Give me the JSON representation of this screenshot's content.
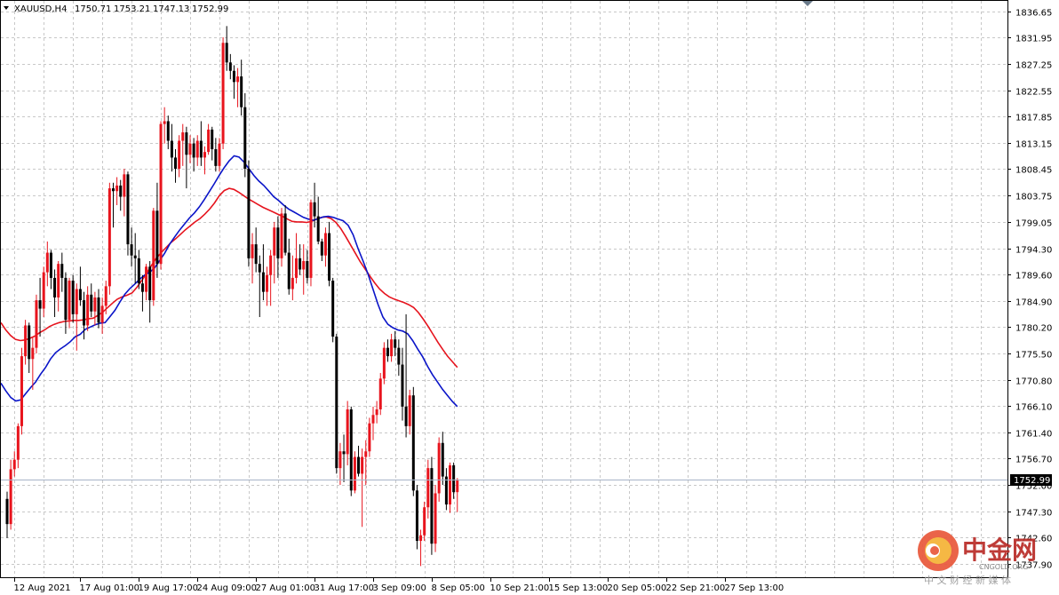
{
  "chart_data": {
    "type": "candlestick",
    "title": {
      "symbol_timeframe": "XAUUSD,H4",
      "open": "1750.71",
      "high": "1753.21",
      "low": "1747.13",
      "close": "1752.99"
    },
    "ylim": [
      1735.5,
      1838.5
    ],
    "y_ticks": [
      "1836.65",
      "1831.95",
      "1827.25",
      "1822.55",
      "1817.85",
      "1813.15",
      "1808.45",
      "1803.75",
      "1799.05",
      "1794.30",
      "1789.60",
      "1784.90",
      "1780.20",
      "1775.50",
      "1770.80",
      "1766.10",
      "1761.40",
      "1756.70",
      "1752.00",
      "1747.30",
      "1742.60",
      "1737.90"
    ],
    "x_ticks": [
      {
        "label": "12 Aug 2021",
        "bar": 2
      },
      {
        "label": "17 Aug 01:00",
        "bar": 20
      },
      {
        "label": "19 Aug 17:00",
        "bar": 36
      },
      {
        "label": "24 Aug 09:00",
        "bar": 52
      },
      {
        "label": "27 Aug 01:00",
        "bar": 68
      },
      {
        "label": "31 Aug 17:00",
        "bar": 84
      },
      {
        "label": "3 Sep 09:00",
        "bar": 100
      },
      {
        "label": "8 Sep 05:00",
        "bar": 116
      },
      {
        "label": "10 Sep 21:00",
        "bar": 132
      },
      {
        "label": "15 Sep 13:00",
        "bar": 148
      },
      {
        "label": "20 Sep 05:00",
        "bar": 164
      },
      {
        "label": "22 Sep 21:00",
        "bar": 180
      },
      {
        "label": "27 Sep 13:00",
        "bar": 196
      }
    ],
    "current_price": "1752.99",
    "candles": [
      [
        1749.5,
        1750.8,
        1742.5,
        1745.0
      ],
      [
        1745.0,
        1756.5,
        1744.0,
        1754.8
      ],
      [
        1754.8,
        1758.0,
        1753.5,
        1756.5
      ],
      [
        1756.5,
        1763.0,
        1755.0,
        1762.5
      ],
      [
        1762.5,
        1776.5,
        1761.0,
        1775.0
      ],
      [
        1775.0,
        1781.5,
        1773.5,
        1780.5
      ],
      [
        1780.5,
        1781.0,
        1772.0,
        1774.5
      ],
      [
        1774.5,
        1778.5,
        1769.0,
        1776.5
      ],
      [
        1776.5,
        1786.0,
        1775.5,
        1785.0
      ],
      [
        1785.0,
        1789.0,
        1778.5,
        1783.5
      ],
      [
        1783.5,
        1791.0,
        1782.0,
        1790.0
      ],
      [
        1790.0,
        1795.5,
        1787.5,
        1793.5
      ],
      [
        1793.5,
        1794.0,
        1787.0,
        1789.0
      ],
      [
        1789.0,
        1790.5,
        1782.0,
        1785.5
      ],
      [
        1785.5,
        1792.0,
        1783.0,
        1791.5
      ],
      [
        1791.5,
        1793.5,
        1786.5,
        1789.0
      ],
      [
        1789.0,
        1790.0,
        1779.0,
        1781.5
      ],
      [
        1781.5,
        1789.0,
        1780.0,
        1788.5
      ],
      [
        1788.5,
        1789.5,
        1781.0,
        1782.5
      ],
      [
        1782.5,
        1788.0,
        1776.0,
        1787.0
      ],
      [
        1787.0,
        1791.0,
        1784.0,
        1785.0
      ],
      [
        1785.0,
        1786.5,
        1778.0,
        1780.5
      ],
      [
        1780.5,
        1787.5,
        1779.5,
        1786.0
      ],
      [
        1786.0,
        1788.0,
        1782.0,
        1783.0
      ],
      [
        1783.0,
        1786.5,
        1780.5,
        1785.5
      ],
      [
        1785.5,
        1787.0,
        1780.0,
        1781.0
      ],
      [
        1781.0,
        1785.5,
        1779.0,
        1784.0
      ],
      [
        1784.0,
        1788.5,
        1782.5,
        1787.5
      ],
      [
        1787.5,
        1806.0,
        1786.0,
        1805.0
      ],
      [
        1805.0,
        1806.0,
        1798.0,
        1804.5
      ],
      [
        1804.5,
        1807.0,
        1802.0,
        1805.5
      ],
      [
        1805.5,
        1806.5,
        1801.0,
        1803.5
      ],
      [
        1803.5,
        1808.5,
        1800.0,
        1807.5
      ],
      [
        1807.5,
        1808.0,
        1793.0,
        1795.0
      ],
      [
        1795.0,
        1798.0,
        1791.0,
        1793.0
      ],
      [
        1793.0,
        1797.0,
        1788.0,
        1792.5
      ],
      [
        1792.5,
        1794.0,
        1787.0,
        1788.0
      ],
      [
        1788.0,
        1789.5,
        1783.0,
        1786.5
      ],
      [
        1786.5,
        1791.5,
        1785.0,
        1791.0
      ],
      [
        1791.0,
        1792.0,
        1781.0,
        1785.0
      ],
      [
        1785.0,
        1801.5,
        1784.0,
        1801.0
      ],
      [
        1801.0,
        1806.0,
        1789.0,
        1791.5
      ],
      [
        1791.5,
        1817.0,
        1790.5,
        1816.5
      ],
      [
        1816.5,
        1819.5,
        1813.0,
        1817.0
      ],
      [
        1817.0,
        1818.0,
        1812.0,
        1813.5
      ],
      [
        1813.5,
        1816.5,
        1808.0,
        1810.5
      ],
      [
        1810.5,
        1812.0,
        1806.0,
        1808.5
      ],
      [
        1808.5,
        1814.5,
        1807.0,
        1813.5
      ],
      [
        1813.5,
        1816.5,
        1809.0,
        1815.0
      ],
      [
        1815.0,
        1816.0,
        1805.0,
        1811.0
      ],
      [
        1811.0,
        1814.5,
        1809.5,
        1813.0
      ],
      [
        1813.0,
        1814.0,
        1808.0,
        1810.5
      ],
      [
        1810.5,
        1814.5,
        1809.0,
        1813.5
      ],
      [
        1813.5,
        1817.0,
        1809.0,
        1810.5
      ],
      [
        1810.5,
        1812.5,
        1807.5,
        1811.5
      ],
      [
        1811.5,
        1816.5,
        1811.0,
        1815.5
      ],
      [
        1815.5,
        1816.0,
        1810.0,
        1812.0
      ],
      [
        1812.0,
        1814.0,
        1808.0,
        1809.0
      ],
      [
        1809.0,
        1814.0,
        1808.0,
        1813.0
      ],
      [
        1813.0,
        1832.0,
        1812.0,
        1831.0
      ],
      [
        1831.0,
        1834.0,
        1826.0,
        1827.5
      ],
      [
        1827.5,
        1829.0,
        1824.5,
        1826.0
      ],
      [
        1826.0,
        1827.0,
        1821.0,
        1824.0
      ],
      [
        1824.0,
        1826.5,
        1819.5,
        1825.0
      ],
      [
        1825.0,
        1828.0,
        1818.0,
        1819.5
      ],
      [
        1819.5,
        1822.0,
        1807.0,
        1808.5
      ],
      [
        1808.5,
        1810.0,
        1791.0,
        1792.5
      ],
      [
        1792.5,
        1797.0,
        1788.0,
        1795.0
      ],
      [
        1795.0,
        1798.0,
        1790.0,
        1791.5
      ],
      [
        1791.5,
        1793.0,
        1782.0,
        1790.0
      ],
      [
        1790.0,
        1795.0,
        1785.0,
        1786.5
      ],
      [
        1786.5,
        1791.0,
        1784.0,
        1789.5
      ],
      [
        1789.5,
        1794.0,
        1784.0,
        1793.0
      ],
      [
        1793.0,
        1799.0,
        1788.0,
        1798.0
      ],
      [
        1798.0,
        1800.0,
        1789.0,
        1792.5
      ],
      [
        1792.5,
        1801.5,
        1791.0,
        1800.5
      ],
      [
        1800.5,
        1802.0,
        1793.0,
        1793.5
      ],
      [
        1793.5,
        1796.0,
        1786.0,
        1787.0
      ],
      [
        1787.0,
        1793.0,
        1785.0,
        1789.0
      ],
      [
        1789.0,
        1797.0,
        1788.0,
        1792.5
      ],
      [
        1792.5,
        1795.0,
        1789.5,
        1790.5
      ],
      [
        1790.5,
        1795.0,
        1786.0,
        1792.0
      ],
      [
        1792.0,
        1794.0,
        1788.0,
        1789.0
      ],
      [
        1789.0,
        1803.0,
        1787.5,
        1802.5
      ],
      [
        1802.5,
        1806.0,
        1798.0,
        1800.0
      ],
      [
        1800.0,
        1803.5,
        1795.0,
        1795.5
      ],
      [
        1795.5,
        1796.0,
        1792.0,
        1793.0
      ],
      [
        1793.0,
        1798.0,
        1791.0,
        1797.0
      ],
      [
        1797.0,
        1799.0,
        1787.5,
        1788.5
      ],
      [
        1788.5,
        1789.0,
        1777.5,
        1778.5
      ],
      [
        1778.5,
        1779.0,
        1754.0,
        1755.0
      ],
      [
        1755.0,
        1759.5,
        1752.0,
        1758.0
      ],
      [
        1758.0,
        1761.0,
        1752.5,
        1757.5
      ],
      [
        1757.5,
        1767.0,
        1755.5,
        1765.5
      ],
      [
        1765.5,
        1766.0,
        1750.0,
        1751.0
      ],
      [
        1751.0,
        1758.0,
        1750.5,
        1757.0
      ],
      [
        1757.0,
        1759.0,
        1753.5,
        1754.0
      ],
      [
        1754.0,
        1758.5,
        1744.5,
        1757.0
      ],
      [
        1757.0,
        1760.0,
        1752.0,
        1758.0
      ],
      [
        1758.0,
        1764.0,
        1757.0,
        1763.0
      ],
      [
        1763.0,
        1766.0,
        1760.0,
        1764.5
      ],
      [
        1764.5,
        1767.0,
        1763.0,
        1765.5
      ],
      [
        1765.5,
        1772.0,
        1764.5,
        1771.0
      ],
      [
        1771.0,
        1777.5,
        1770.0,
        1776.5
      ],
      [
        1776.5,
        1778.0,
        1774.0,
        1775.0
      ],
      [
        1775.0,
        1779.0,
        1774.0,
        1778.0
      ],
      [
        1778.0,
        1779.5,
        1775.0,
        1776.5
      ],
      [
        1776.5,
        1778.0,
        1771.5,
        1773.5
      ],
      [
        1773.5,
        1776.5,
        1763.5,
        1766.0
      ],
      [
        1766.0,
        1782.5,
        1760.5,
        1762.5
      ],
      [
        1762.5,
        1769.0,
        1761.0,
        1768.0
      ],
      [
        1768.0,
        1769.5,
        1750.0,
        1751.0
      ],
      [
        1751.0,
        1752.0,
        1740.5,
        1742.0
      ],
      [
        1742.0,
        1744.0,
        1737.5,
        1743.0
      ],
      [
        1743.0,
        1749.0,
        1742.0,
        1748.0
      ],
      [
        1748.0,
        1756.5,
        1746.0,
        1755.0
      ],
      [
        1755.0,
        1757.0,
        1739.5,
        1741.5
      ],
      [
        1741.5,
        1752.0,
        1740.0,
        1750.5
      ],
      [
        1750.5,
        1760.5,
        1749.0,
        1759.5
      ],
      [
        1759.5,
        1761.5,
        1752.0,
        1753.5
      ],
      [
        1753.5,
        1755.0,
        1747.5,
        1748.5
      ],
      [
        1748.5,
        1756.0,
        1747.0,
        1755.5
      ],
      [
        1755.5,
        1756.0,
        1749.5,
        1750.7
      ],
      [
        1750.71,
        1753.21,
        1747.13,
        1752.99
      ]
    ],
    "ma_fast": [
      1770.2,
      1768.8,
      1767.6,
      1767.0,
      1767.2,
      1768.3,
      1769.4,
      1770.4,
      1771.8,
      1773.0,
      1774.5,
      1775.6,
      1776.3,
      1776.9,
      1777.6,
      1778.5,
      1778.9,
      1779.8,
      1780.2,
      1780.6,
      1780.9,
      1781.0,
      1782.1,
      1783.2,
      1784.7,
      1786.1,
      1787.1,
      1787.9,
      1788.8,
      1789.5,
      1790.0,
      1790.8,
      1792.1,
      1793.4,
      1795.0,
      1796.3,
      1797.5,
      1798.6,
      1799.7,
      1800.6,
      1801.7,
      1803.0,
      1804.4,
      1805.8,
      1807.3,
      1808.7,
      1809.9,
      1810.8,
      1810.6,
      1809.7,
      1808.5,
      1807.3,
      1806.3,
      1805.5,
      1804.5,
      1803.5,
      1802.8,
      1802.0,
      1801.3,
      1800.8,
      1800.3,
      1799.8,
      1799.5,
      1799.3,
      1799.6,
      1799.9,
      1800.0,
      1799.8,
      1799.5,
      1799.2,
      1798.4,
      1796.7,
      1794.2,
      1792.0,
      1789.7,
      1787.0,
      1784.3,
      1782.0,
      1780.7,
      1780.1,
      1779.7,
      1779.5,
      1779.0,
      1777.8,
      1776.3,
      1774.9,
      1773.2,
      1771.7,
      1770.4,
      1769.1,
      1768.0,
      1766.9,
      1766.0
    ],
    "ma_slow": [
      1781.0,
      1779.7,
      1778.7,
      1778.0,
      1777.8,
      1777.9,
      1778.2,
      1778.6,
      1779.2,
      1779.7,
      1780.3,
      1780.7,
      1781.0,
      1781.2,
      1781.3,
      1781.4,
      1781.4,
      1781.5,
      1781.7,
      1781.8,
      1782.3,
      1782.9,
      1783.7,
      1784.5,
      1785.2,
      1785.6,
      1785.9,
      1786.3,
      1787.3,
      1788.5,
      1789.8,
      1791.2,
      1792.5,
      1793.5,
      1794.4,
      1795.3,
      1796.0,
      1796.8,
      1797.6,
      1798.3,
      1799.0,
      1799.6,
      1800.4,
      1801.3,
      1802.4,
      1803.7,
      1804.6,
      1805.0,
      1804.8,
      1804.3,
      1803.7,
      1803.1,
      1802.6,
      1802.1,
      1801.6,
      1801.2,
      1800.8,
      1800.4,
      1800.0,
      1799.5,
      1799.1,
      1799.0,
      1799.0,
      1798.9,
      1799.1,
      1799.5,
      1799.8,
      1799.9,
      1799.6,
      1798.9,
      1797.8,
      1796.4,
      1794.9,
      1793.4,
      1791.9,
      1790.6,
      1789.3,
      1788.1,
      1787.0,
      1786.2,
      1785.6,
      1785.2,
      1784.9,
      1784.6,
      1784.2,
      1783.7,
      1782.8,
      1781.6,
      1780.3,
      1778.9,
      1777.5,
      1776.2,
      1775.0,
      1774.0,
      1773.0
    ],
    "colors": {
      "bull": "#e8141d",
      "bear": "#000000",
      "ma_fast": "#0a14c8",
      "ma_slow": "#e6141e",
      "price_label_bg": "#000000",
      "price_line": "#a8b4c8",
      "grid": "#c8c8c8"
    }
  },
  "watermark": {
    "brand_cn": "中金网",
    "brand_en": "CNGOLD.ORG",
    "sub_cn": "中 文 财 经 新 媒 体"
  }
}
